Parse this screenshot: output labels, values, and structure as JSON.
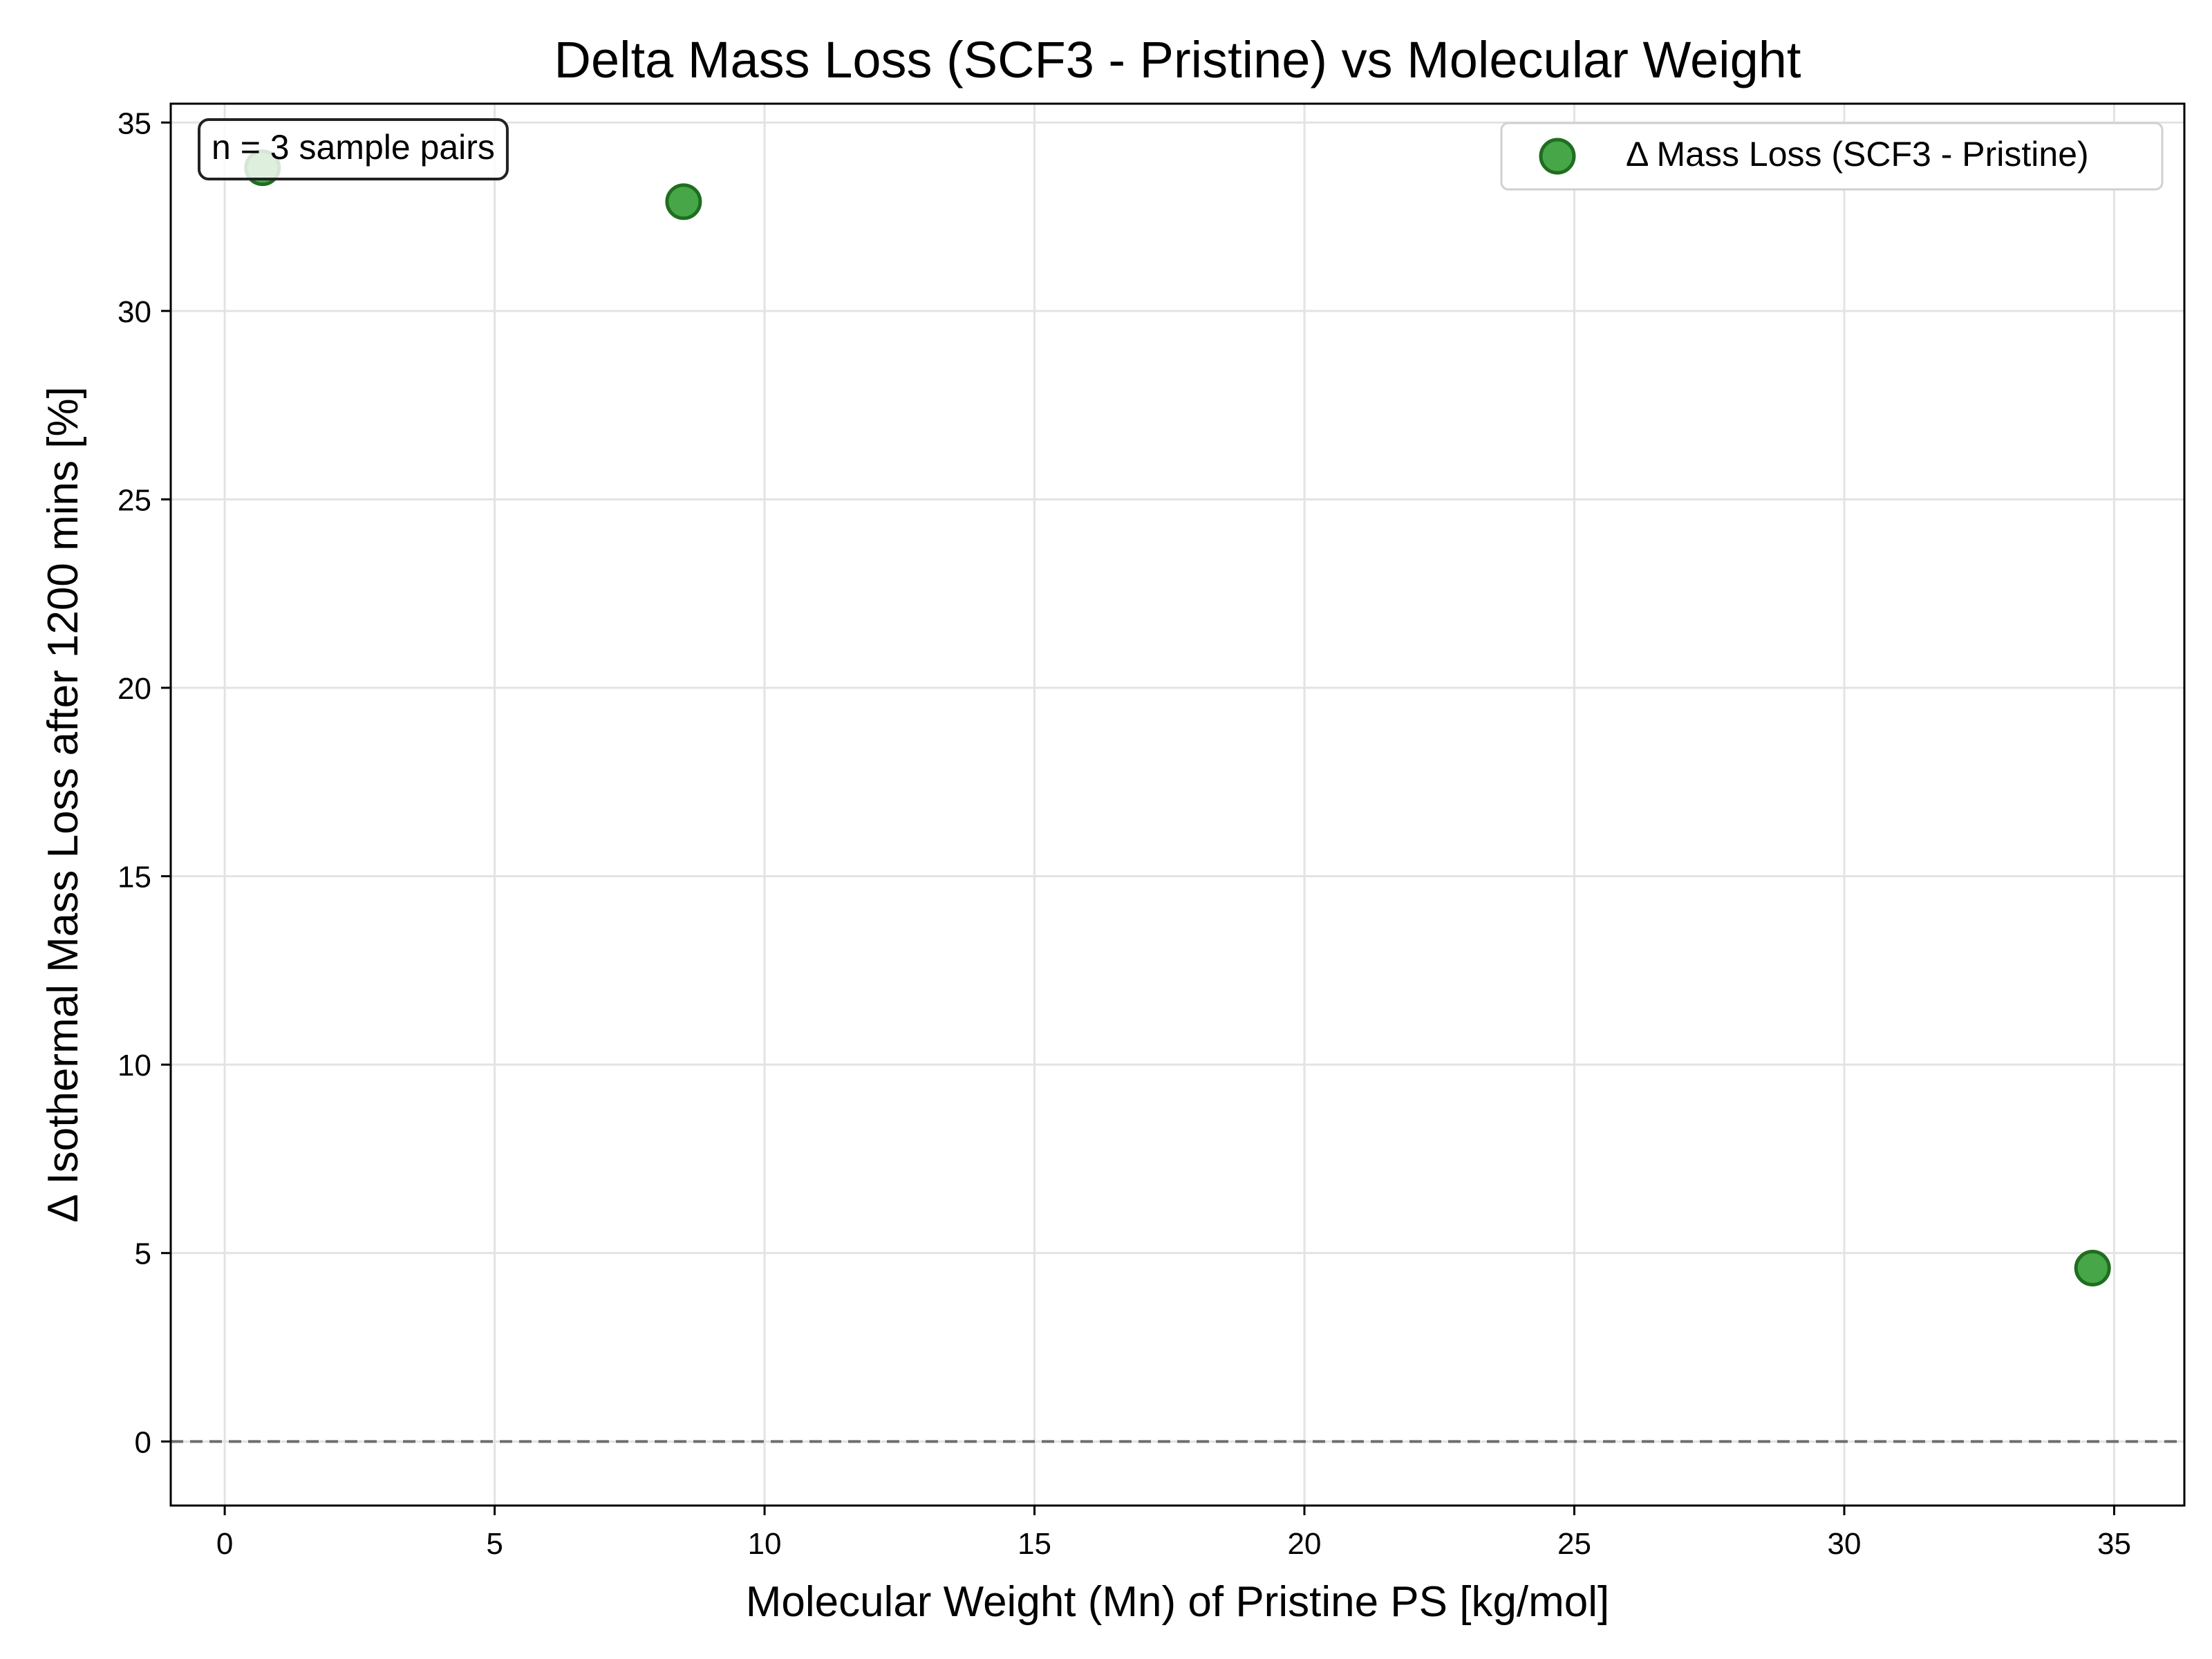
{
  "chart_data": {
    "type": "scatter",
    "title": "Delta Mass Loss (SCF3 - Pristine) vs Molecular Weight",
    "xlabel": "Molecular Weight (Mn) of Pristine PS [kg/mol]",
    "ylabel": "Δ Isothermal Mass Loss after 1200 mins [%]",
    "xlim": [
      -1,
      36.3
    ],
    "ylim": [
      -1.7,
      35.5
    ],
    "xticks": [
      0,
      5,
      10,
      15,
      20,
      25,
      30,
      35
    ],
    "yticks": [
      0,
      5,
      10,
      15,
      20,
      25,
      30,
      35
    ],
    "grid": true,
    "legend_position": "top-right",
    "reference_line": {
      "y": 0,
      "style": "dashed"
    },
    "annotation": "n = 3 sample pairs",
    "series": [
      {
        "name": "Δ Mass Loss (SCF3 - Pristine)",
        "color": "#2e9a2e",
        "points": [
          {
            "x": 0.7,
            "y": 33.8
          },
          {
            "x": 8.5,
            "y": 32.9
          },
          {
            "x": 34.6,
            "y": 4.6
          }
        ]
      }
    ]
  }
}
